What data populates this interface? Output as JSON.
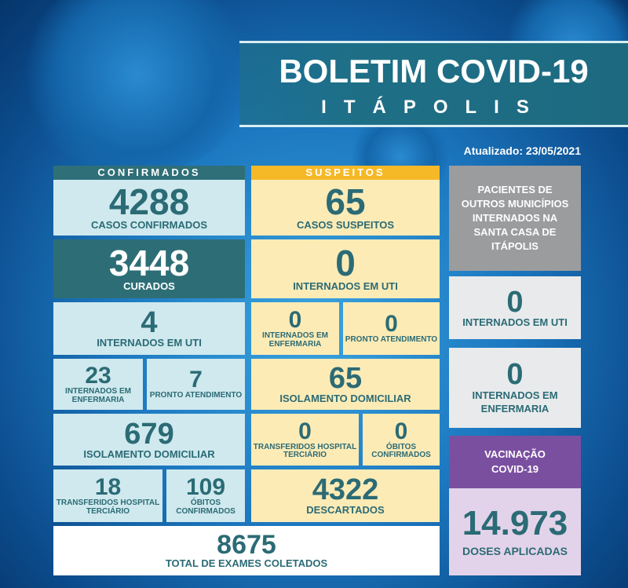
{
  "header": {
    "title": "BOLETIM COVID-19",
    "city": "ITÁPOLIS",
    "updated": "Atualizado: 23/05/2021"
  },
  "confirmados": {
    "header": "CONFIRMADOS",
    "casos": {
      "value": "4288",
      "label": "CASOS CONFIRMADOS"
    },
    "curados": {
      "value": "3448",
      "label": "CURADOS"
    },
    "uti": {
      "value": "4",
      "label": "INTERNADOS EM UTI"
    },
    "enfermaria": {
      "value": "23",
      "label": "INTERNADOS EM ENFERMARIA"
    },
    "pronto": {
      "value": "7",
      "label": "PRONTO ATENDIMENTO"
    },
    "isolamento": {
      "value": "679",
      "label": "ISOLAMENTO DOMICILIAR"
    },
    "transferidos": {
      "value": "18",
      "label": "TRANSFERIDOS HOSPITAL TERCIÁRIO"
    },
    "obitos": {
      "value": "109",
      "label": "ÓBITOS CONFIRMADOS"
    }
  },
  "suspeitos": {
    "header": "SUSPEITOS",
    "casos": {
      "value": "65",
      "label": "CASOS SUSPEITOS"
    },
    "uti": {
      "value": "0",
      "label": "INTERNADOS EM UTI"
    },
    "enfermaria": {
      "value": "0",
      "label": "INTERNADOS EM ENFERMARIA"
    },
    "pronto": {
      "value": "0",
      "label": "PRONTO ATENDIMENTO"
    },
    "isolamento": {
      "value": "65",
      "label": "ISOLAMENTO DOMICILIAR"
    },
    "transferidos": {
      "value": "0",
      "label": "TRANSFERIDOS HOSPITAL TERCIÁRIO"
    },
    "obitos": {
      "value": "0",
      "label": "ÓBITOS CONFIRMADOS"
    },
    "descartados": {
      "value": "4322",
      "label": "DESCARTADOS"
    }
  },
  "total": {
    "value": "8675",
    "label": "TOTAL DE EXAMES COLETADOS"
  },
  "outros": {
    "header": "PACIENTES DE OUTROS MUNICÍPIOS INTERNADOS NA SANTA CASA DE ITÁPOLIS",
    "uti": {
      "value": "0",
      "label": "INTERNADOS EM UTI"
    },
    "enfermaria": {
      "value": "0",
      "label": "INTERNADOS EM ENFERMARIA"
    }
  },
  "vacinacao": {
    "header": "VACINAÇÃO COVID-19",
    "value": "14.973",
    "label": "DOSES APLICADAS"
  },
  "colors": {
    "teal": "#2e6f78",
    "yellow": "#f5b928",
    "gray": "#9a9c9e",
    "purple": "#7a4fa0",
    "text": "#2b6b75"
  }
}
